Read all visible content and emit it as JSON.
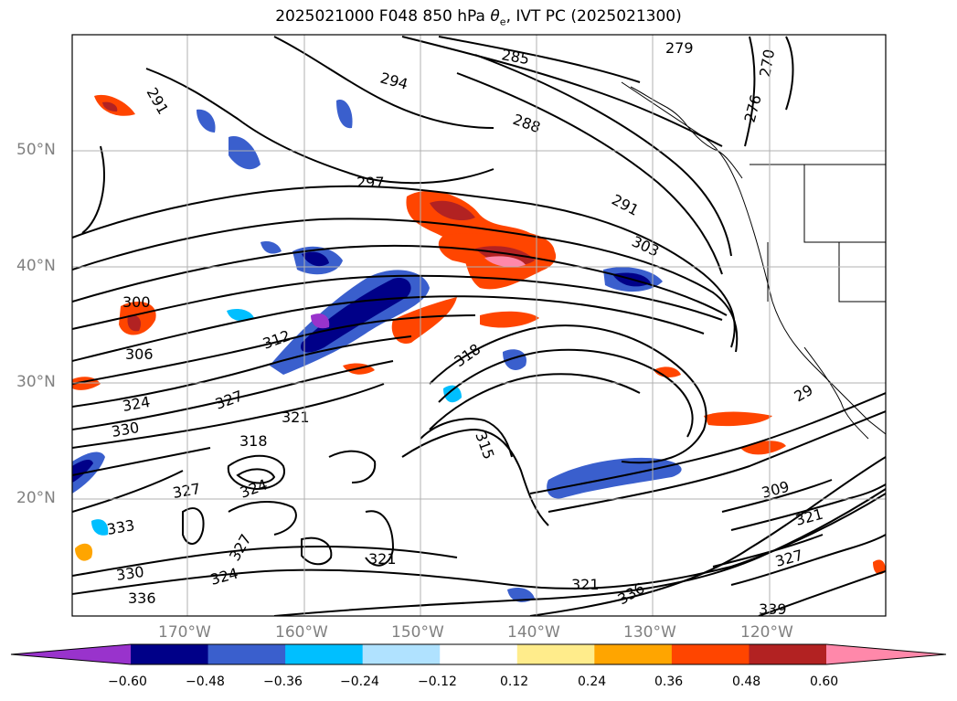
{
  "title": {
    "prefix": "2025021000 F048 850 hPa ",
    "theta": "θ",
    "theta_sub": "e",
    "suffix": ", IVT PC (2025021300)"
  },
  "map": {
    "lat_labels": [
      "50°N",
      "40°N",
      "30°N",
      "20°N"
    ],
    "lon_labels": [
      "170°W",
      "160°W",
      "150°W",
      "140°W",
      "130°W",
      "120°W"
    ],
    "contour_labels": [
      "285",
      "279",
      "270",
      "294",
      "291",
      "288",
      "297",
      "276",
      "291",
      "303",
      "300",
      "306",
      "312",
      "318",
      "324",
      "327",
      "321",
      "330",
      "318",
      "324",
      "315",
      "327",
      "333",
      "324",
      "327",
      "330",
      "336",
      "336",
      "321",
      "309",
      "321",
      "327",
      "339",
      "321",
      "29"
    ]
  },
  "colorbar": {
    "colors": [
      "#9933cc",
      "#000088",
      "#3a5fcd",
      "#00bfff",
      "#b0e2ff",
      "#ffffff",
      "#ffec8b",
      "#ffa500",
      "#ff4500",
      "#b22222",
      "#ff88aa"
    ],
    "ticks": [
      "−0.60",
      "−0.48",
      "−0.36",
      "−0.24",
      "−0.12",
      "0.12",
      "0.24",
      "0.36",
      "0.48",
      "0.60"
    ]
  }
}
